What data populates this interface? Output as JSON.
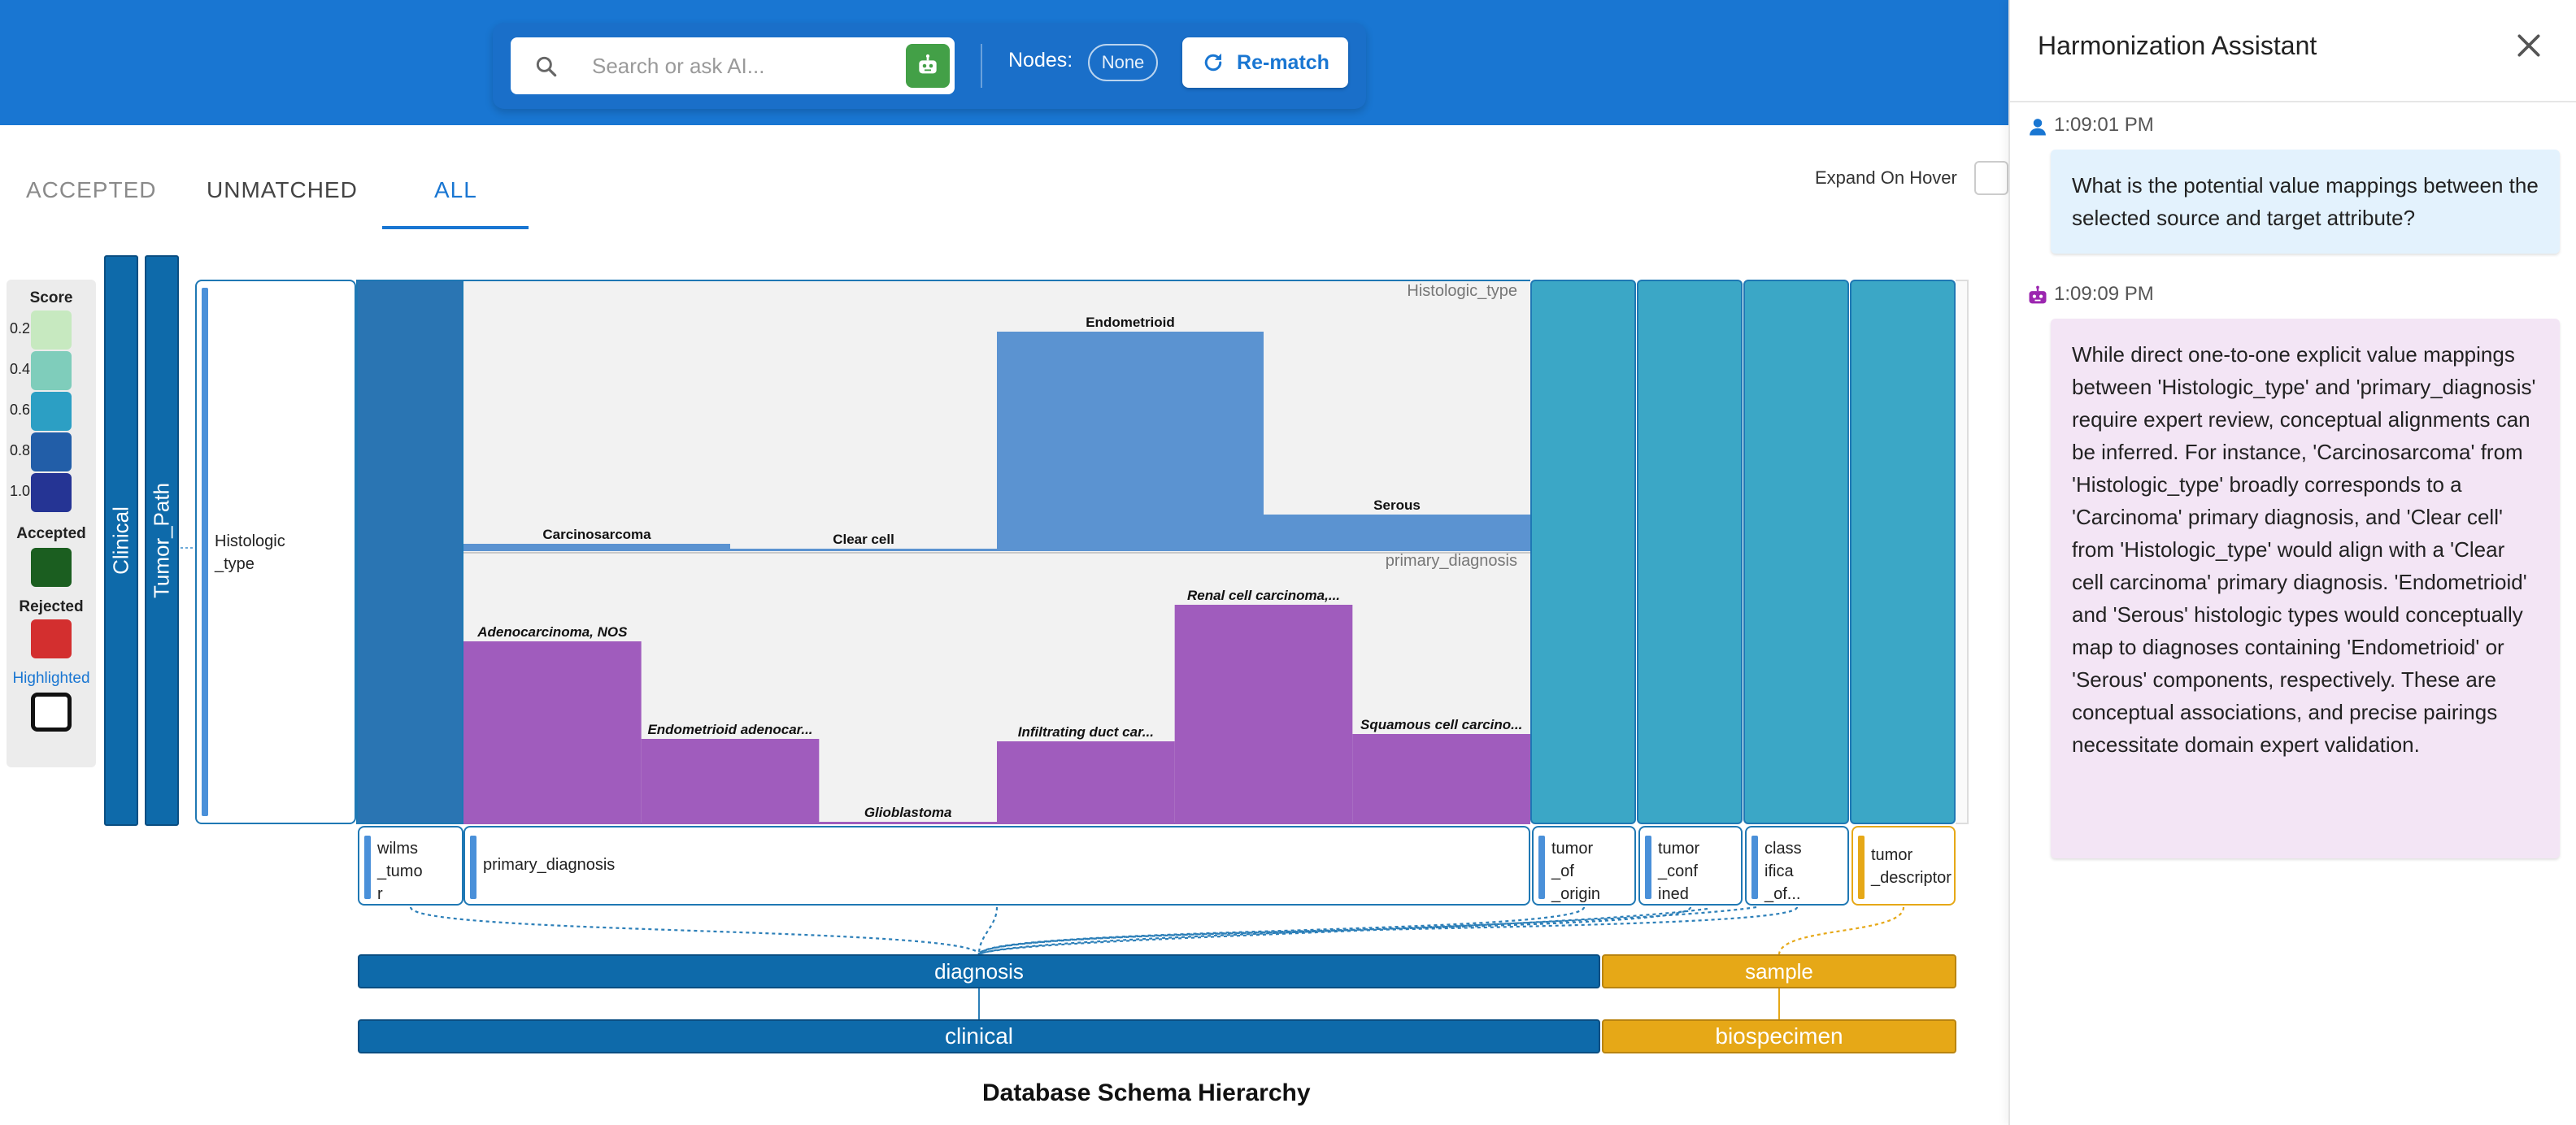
{
  "toolbar": {
    "search_placeholder": "Search or ask AI...",
    "nodes_label": "Nodes:",
    "nodes_value": "None",
    "rematch_label": "Re-match"
  },
  "tabs": [
    {
      "label": "ACCEPTED",
      "active": false
    },
    {
      "label": "UNMATCHED",
      "active": false
    },
    {
      "label": "ALL",
      "active": true
    }
  ],
  "expand_on_hover": {
    "label": "Expand On Hover",
    "checked": false
  },
  "legend": {
    "score_title": "Score",
    "scores": [
      {
        "label": "0.2",
        "color": "#c7e9c0"
      },
      {
        "label": "0.4",
        "color": "#7fcdbb"
      },
      {
        "label": "0.6",
        "color": "#2c9fc4"
      },
      {
        "label": "0.8",
        "color": "#225ea8"
      },
      {
        "label": "1.0",
        "color": "#253494"
      }
    ],
    "accepted_label": "Accepted",
    "accepted_color": "#1b5e20",
    "rejected_label": "Rejected",
    "rejected_color": "#d32f2f",
    "highlighted_label": "Highlighted"
  },
  "vertical_bars": {
    "clinical": "Clinical",
    "tumor_path": "Tumor_Path"
  },
  "source_column": {
    "label": "Histologic\n_type"
  },
  "chart_data": [
    {
      "type": "bar",
      "title": "Histologic_type",
      "categories": [
        "Carcinosarcoma",
        "Clear cell",
        "Endometrioid",
        "Serous"
      ],
      "values": [
        3,
        1,
        90,
        15
      ],
      "ylim": [
        0,
        100
      ],
      "color": "#5b93d1"
    },
    {
      "type": "bar",
      "title": "primary_diagnosis",
      "categories": [
        "Adenocarcinoma, NOS",
        "Endometrioid adenocar...",
        "Glioblastoma",
        "Infiltrating duct car...",
        "Renal cell carcinoma,...",
        "Squamous cell carcino..."
      ],
      "values": [
        75,
        35,
        1,
        34,
        90,
        37
      ],
      "ylim": [
        0,
        100
      ],
      "color": "#a05cbd"
    }
  ],
  "target_columns": [
    {
      "label": "wilms\n_tumo\nr",
      "color": "#1f78b4"
    },
    {
      "label": "primary_diagnosis",
      "color": "#1f78b4"
    },
    {
      "label": "tumor\n_of\n_origin",
      "color": "#1f78b4"
    },
    {
      "label": "tumor\n_conf\nined",
      "color": "#1f78b4"
    },
    {
      "label": "class\nifica\n_of...",
      "color": "#1f78b4"
    },
    {
      "label": "tumor\n_descriptor",
      "color": "#e6a817"
    }
  ],
  "hierarchy": {
    "diagnosis": "diagnosis",
    "sample": "sample",
    "clinical": "clinical",
    "biospecimen": "biospecimen",
    "title": "Database Schema Hierarchy",
    "blue": "#0e6aaa",
    "orange": "#e6a817"
  },
  "assistant": {
    "title": "Harmonization Assistant",
    "messages": [
      {
        "role": "user",
        "time": "1:09:01 PM",
        "text": "What is the potential value mappings between the selected source and target attribute?"
      },
      {
        "role": "assistant",
        "time": "1:09:09 PM",
        "text": "While direct one-to-one explicit value mappings between 'Histologic_type' and 'primary_diagnosis' require expert review, conceptual alignments can be inferred. For instance, 'Carcinosarcoma' from 'Histologic_type' broadly corresponds to a 'Carcinoma' primary diagnosis, and 'Clear cell' from 'Histologic_type' would align with a 'Clear cell carcinoma' primary diagnosis. 'Endometrioid' and 'Serous' histologic types would conceptually map to diagnoses containing 'Endometrioid' or 'Serous' components, respectively. These are conceptual associations, and precise pairings necessitate domain expert validation."
      }
    ]
  }
}
